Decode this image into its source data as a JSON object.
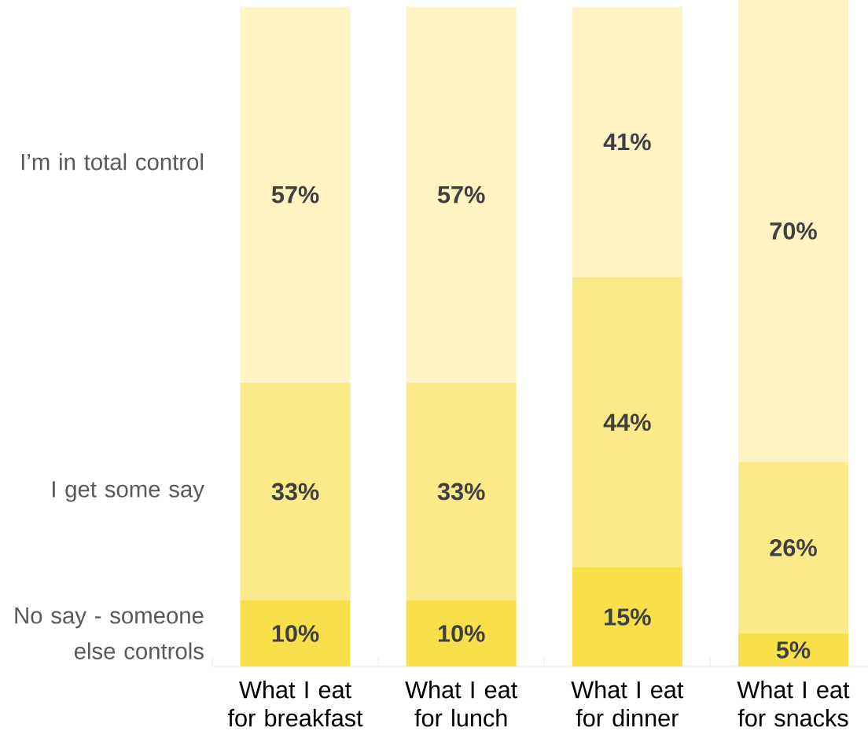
{
  "chart_data": {
    "type": "bar",
    "stacked": true,
    "categories": [
      "What I eat for breakfast",
      "What I eat for lunch",
      "What I eat for dinner",
      "What I eat for snacks"
    ],
    "series": [
      {
        "name": "No say - someone else controls",
        "color": "#f9df4a",
        "values": [
          10,
          10,
          15,
          5
        ],
        "value_labels": [
          "10%",
          "10%",
          "15%",
          "5%"
        ]
      },
      {
        "name": "I get some say",
        "color": "#fbe98a",
        "values": [
          33,
          33,
          44,
          26
        ],
        "value_labels": [
          "33%",
          "33%",
          "44%",
          "26%"
        ]
      },
      {
        "name": "I’m in total control",
        "color": "#fdf3c3",
        "values": [
          57,
          57,
          41,
          70
        ],
        "value_labels": [
          "57%",
          "57%",
          "41%",
          "70%"
        ]
      }
    ]
  }
}
